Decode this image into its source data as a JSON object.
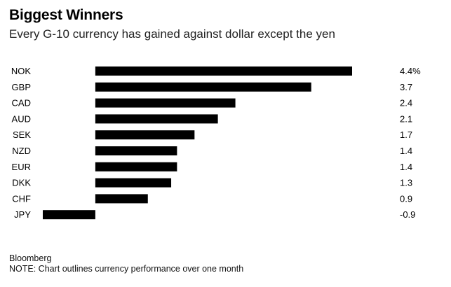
{
  "chart_data": {
    "type": "bar",
    "orientation": "horizontal",
    "title": "Biggest Winners",
    "subtitle": "Every G-10 currency has gained against dollar except the yen",
    "categories": [
      "NOK",
      "GBP",
      "CAD",
      "AUD",
      "SEK",
      "NZD",
      "EUR",
      "DKK",
      "CHF",
      "JPY"
    ],
    "values": [
      4.4,
      3.7,
      2.4,
      2.1,
      1.7,
      1.4,
      1.4,
      1.3,
      0.9,
      -0.9
    ],
    "value_labels": [
      "4.4%",
      "3.7",
      "2.4",
      "2.1",
      "1.7",
      "1.4",
      "1.4",
      "1.3",
      "0.9",
      "-0.9"
    ],
    "xlim": [
      -0.9,
      4.4
    ],
    "bar_color": "#000000",
    "grid": false,
    "source": "Bloomberg",
    "note": "NOTE: Chart outlines currency performance over one month"
  }
}
